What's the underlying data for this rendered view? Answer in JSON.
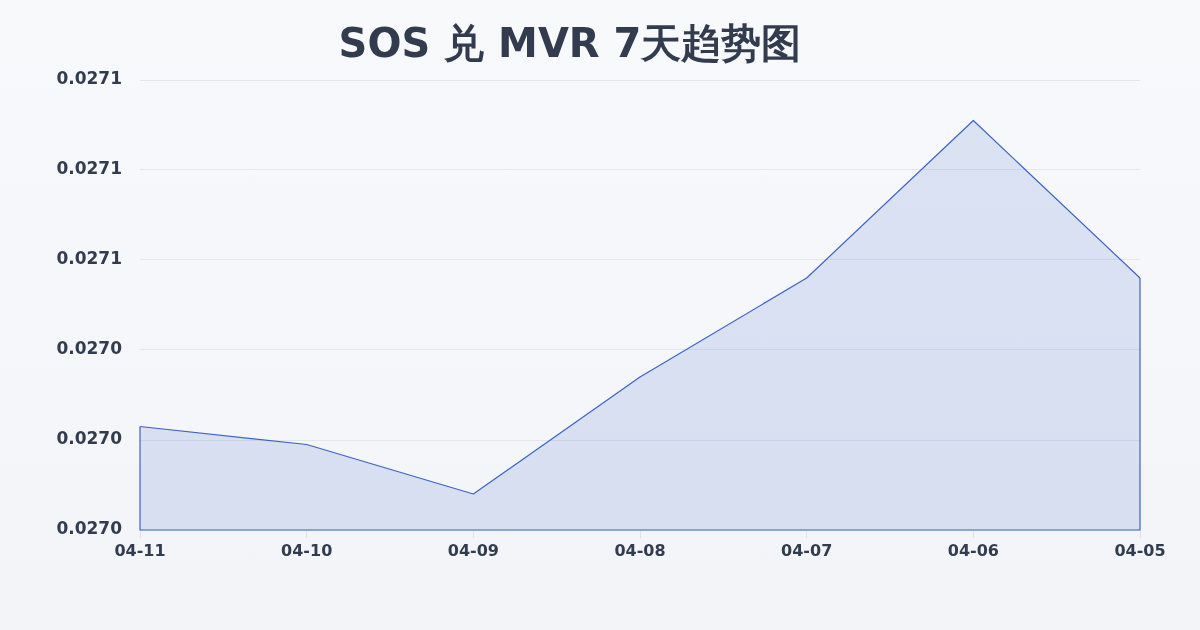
{
  "chart_data": {
    "type": "area",
    "title": "SOS 兑 MVR 7天趋势图",
    "categories": [
      "04-11",
      "04-10",
      "04-09",
      "04-08",
      "04-07",
      "04-06",
      "04-05"
    ],
    "series": [
      {
        "color": "#3b63c9",
        "values": [
          0.027023,
          0.027019,
          0.027008,
          0.027034,
          0.027056,
          0.027091,
          0.027056
        ]
      }
    ],
    "ylim": [
      0.027,
      0.0271
    ],
    "yticks": [
      {
        "value": 0.027,
        "label": "0.0270"
      },
      {
        "value": 0.02702,
        "label": "0.0270"
      },
      {
        "value": 0.02704,
        "label": "0.0270"
      },
      {
        "value": 0.02706,
        "label": "0.0271"
      },
      {
        "value": 0.02708,
        "label": "0.0271"
      },
      {
        "value": 0.0271,
        "label": "0.0271"
      }
    ],
    "grid": "y",
    "marker": "none"
  }
}
